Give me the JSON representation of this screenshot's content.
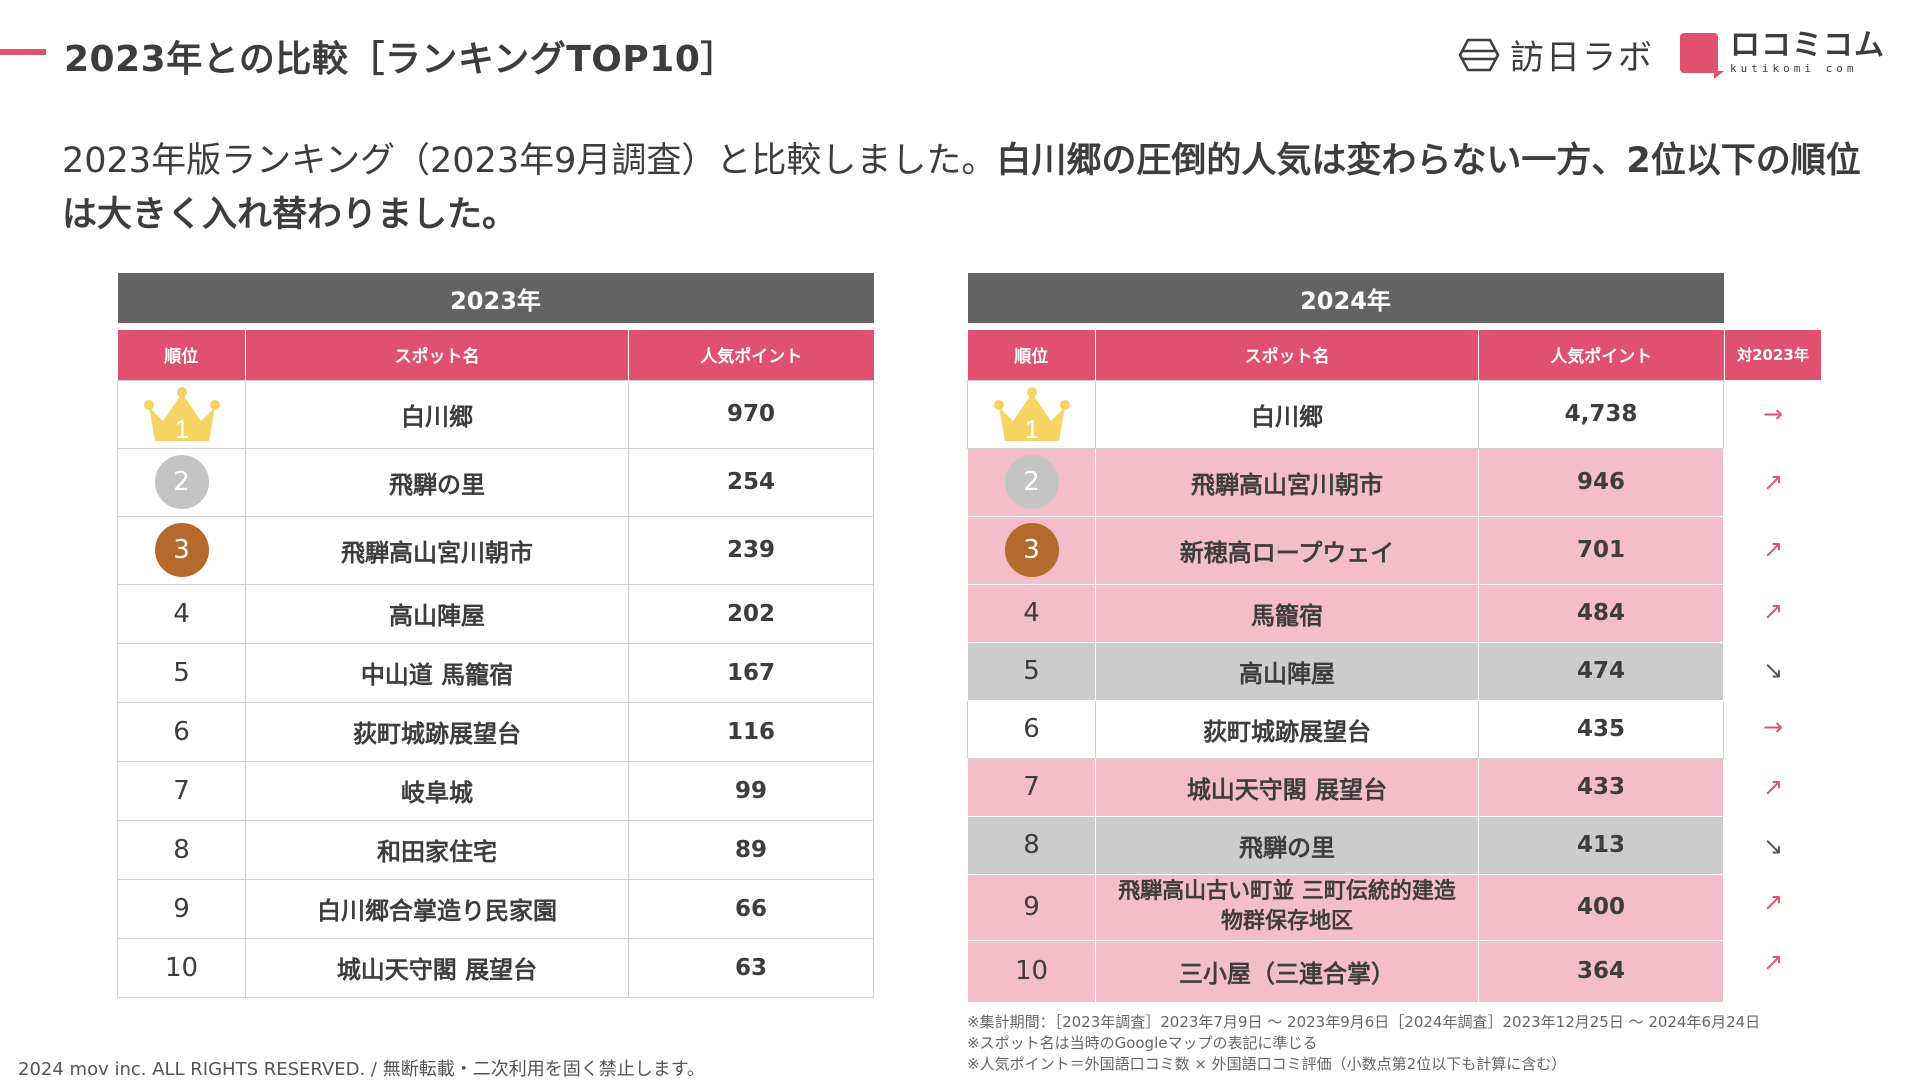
{
  "header": {
    "title": "2023年との比較［ランキングTOP10］",
    "brand_houni": "訪日ラボ",
    "brand_kuchikomi": "ロコミコム",
    "brand_kuchikomi_sub": "kutikomi com"
  },
  "lead": {
    "normal": "2023年版ランキング（2023年9月調査）と比較しました。",
    "bold": "白川郷の圧倒的人気は変わらない一方、2位以下の順位は大きく入れ替わりました。"
  },
  "table_2023": {
    "year": "2023年",
    "headers": [
      "順位",
      "スポット名",
      "人気ポイント"
    ],
    "rows": [
      {
        "rank": "1",
        "name": "白川郷",
        "points": "970"
      },
      {
        "rank": "2",
        "name": "飛騨の里",
        "points": "254"
      },
      {
        "rank": "3",
        "name": "飛騨高山宮川朝市",
        "points": "239"
      },
      {
        "rank": "4",
        "name": "高山陣屋",
        "points": "202"
      },
      {
        "rank": "5",
        "name": "中山道 馬籠宿",
        "points": "167"
      },
      {
        "rank": "6",
        "name": "荻町城跡展望台",
        "points": "116"
      },
      {
        "rank": "7",
        "name": "岐阜城",
        "points": "99"
      },
      {
        "rank": "8",
        "name": "和田家住宅",
        "points": "89"
      },
      {
        "rank": "9",
        "name": "白川郷合掌造り民家園",
        "points": "66"
      },
      {
        "rank": "10",
        "name": "城山天守閣 展望台",
        "points": "63"
      }
    ]
  },
  "table_2024": {
    "year": "2024年",
    "headers": [
      "順位",
      "スポット名",
      "人気ポイント"
    ],
    "change_header": "対2023年",
    "rows": [
      {
        "rank": "1",
        "name": "白川郷",
        "points": "4,738",
        "change": "→",
        "highlight": "none"
      },
      {
        "rank": "2",
        "name": "飛騨高山宮川朝市",
        "points": "946",
        "change": "↗",
        "highlight": "up"
      },
      {
        "rank": "3",
        "name": "新穂高ロープウェイ",
        "points": "701",
        "change": "↗",
        "highlight": "up"
      },
      {
        "rank": "4",
        "name": "馬籠宿",
        "points": "484",
        "change": "↗",
        "highlight": "up"
      },
      {
        "rank": "5",
        "name": "高山陣屋",
        "points": "474",
        "change": "↘",
        "highlight": "down"
      },
      {
        "rank": "6",
        "name": "荻町城跡展望台",
        "points": "435",
        "change": "→",
        "highlight": "none"
      },
      {
        "rank": "7",
        "name": "城山天守閣 展望台",
        "points": "433",
        "change": "↗",
        "highlight": "up"
      },
      {
        "rank": "8",
        "name": "飛騨の里",
        "points": "413",
        "change": "↘",
        "highlight": "down"
      },
      {
        "rank": "9",
        "name": "飛騨高山古い町並 三町伝統的建造物群保存地区",
        "name_line1": "飛騨高山古い町並 三町伝統的建造",
        "name_line2": "物群保存地区",
        "points": "400",
        "change": "↗",
        "highlight": "up"
      },
      {
        "rank": "10",
        "name": "三小屋（三連合掌）",
        "points": "364",
        "change": "↗",
        "highlight": "up"
      }
    ]
  },
  "notes": [
    "※集計期間：［2023年調査］2023年7月9日 〜 2023年9月6日［2024年調査］2023年12月25日 〜 2024年6月24日",
    "※スポット名は当時のGoogleマップの表記に準じる",
    "※人気ポイント＝外国語口コミ数 × 外国語口コミ評価（小数点第2位以下も計算に含む）"
  ],
  "footer": {
    "copyright": "2024 mov inc. ALL RIGHTS RESERVED. / 無断転載・二次利用を固く禁止します。"
  },
  "colors": {
    "accent": "#e0506f",
    "header_gray": "#636363",
    "row_up": "#f4bdca",
    "row_down": "#cccccc",
    "gold": "#f5d463",
    "silver": "#c4c4c4",
    "bronze": "#b46a2c"
  }
}
